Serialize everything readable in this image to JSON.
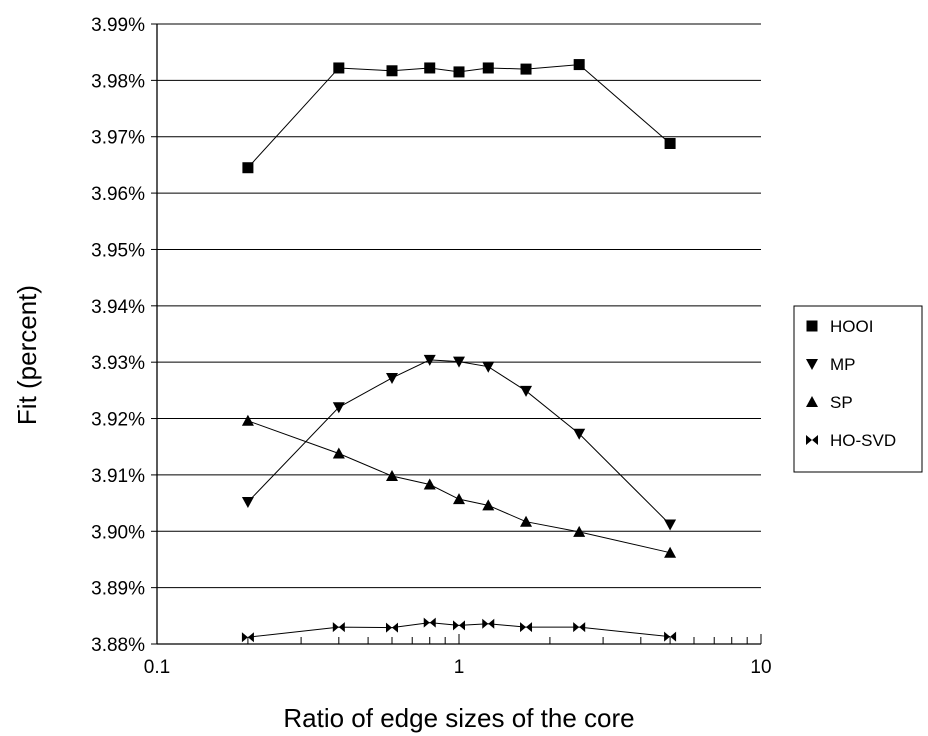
{
  "chart_data": {
    "type": "scatter",
    "title": "",
    "xlabel": "Ratio of edge sizes of the core",
    "ylabel": "Fit (percent)",
    "xscale": "log",
    "xlim": [
      0.1,
      10
    ],
    "ylim": [
      3.88,
      3.99
    ],
    "x_ticks": [
      {
        "value": 0.1,
        "label": "0.1"
      },
      {
        "value": 1,
        "label": "1"
      },
      {
        "value": 10,
        "label": "10"
      }
    ],
    "y_ticks": [
      {
        "value": 3.88,
        "label": "3.88%"
      },
      {
        "value": 3.89,
        "label": "3.89%"
      },
      {
        "value": 3.9,
        "label": "3.90%"
      },
      {
        "value": 3.91,
        "label": "3.91%"
      },
      {
        "value": 3.92,
        "label": "3.92%"
      },
      {
        "value": 3.93,
        "label": "3.93%"
      },
      {
        "value": 3.94,
        "label": "3.94%"
      },
      {
        "value": 3.95,
        "label": "3.95%"
      },
      {
        "value": 3.96,
        "label": "3.96%"
      },
      {
        "value": 3.97,
        "label": "3.97%"
      },
      {
        "value": 3.98,
        "label": "3.98%"
      },
      {
        "value": 3.99,
        "label": "3.99%"
      }
    ],
    "grid": "horizontal",
    "legend_position": "right",
    "x": [
      0.2,
      0.4,
      0.6,
      0.8,
      1.0,
      1.25,
      1.667,
      2.5,
      5.0
    ],
    "series": [
      {
        "name": "HOOI",
        "marker": "square",
        "values": [
          3.9645,
          3.9822,
          3.9817,
          3.9822,
          3.9815,
          3.9822,
          3.982,
          3.9828,
          3.9688
        ]
      },
      {
        "name": "MP",
        "marker": "triangle-down",
        "values": [
          3.9052,
          3.922,
          3.9272,
          3.9304,
          3.9301,
          3.9292,
          3.9249,
          3.9173,
          3.9012
        ]
      },
      {
        "name": "SP",
        "marker": "triangle-up",
        "values": [
          3.9196,
          3.9138,
          3.9098,
          3.9083,
          3.9057,
          3.9046,
          3.9017,
          3.8999,
          3.8962
        ]
      },
      {
        "name": "HO-SVD",
        "marker": "bowtie",
        "values": [
          3.8812,
          3.883,
          3.8829,
          3.8838,
          3.8833,
          3.8836,
          3.883,
          3.883,
          3.8813
        ]
      }
    ]
  }
}
